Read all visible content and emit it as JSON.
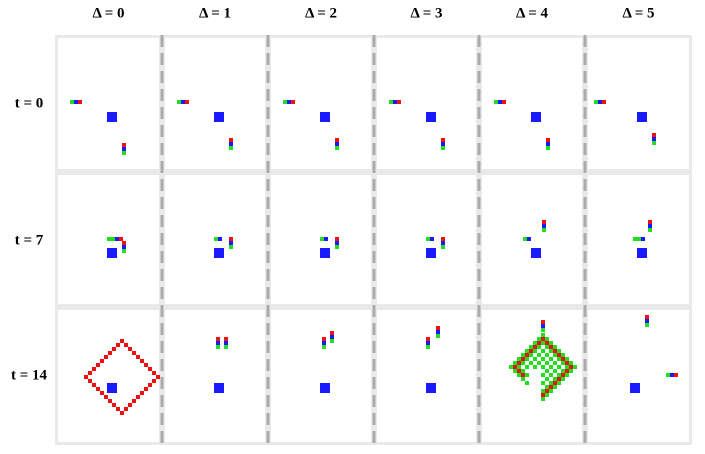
{
  "columns": [
    "Δ = 0",
    "Δ = 1",
    "Δ = 2",
    "Δ = 3",
    "Δ = 4",
    "Δ = 5"
  ],
  "rows": [
    "t = 0",
    "t = 7",
    "t = 14"
  ]
}
